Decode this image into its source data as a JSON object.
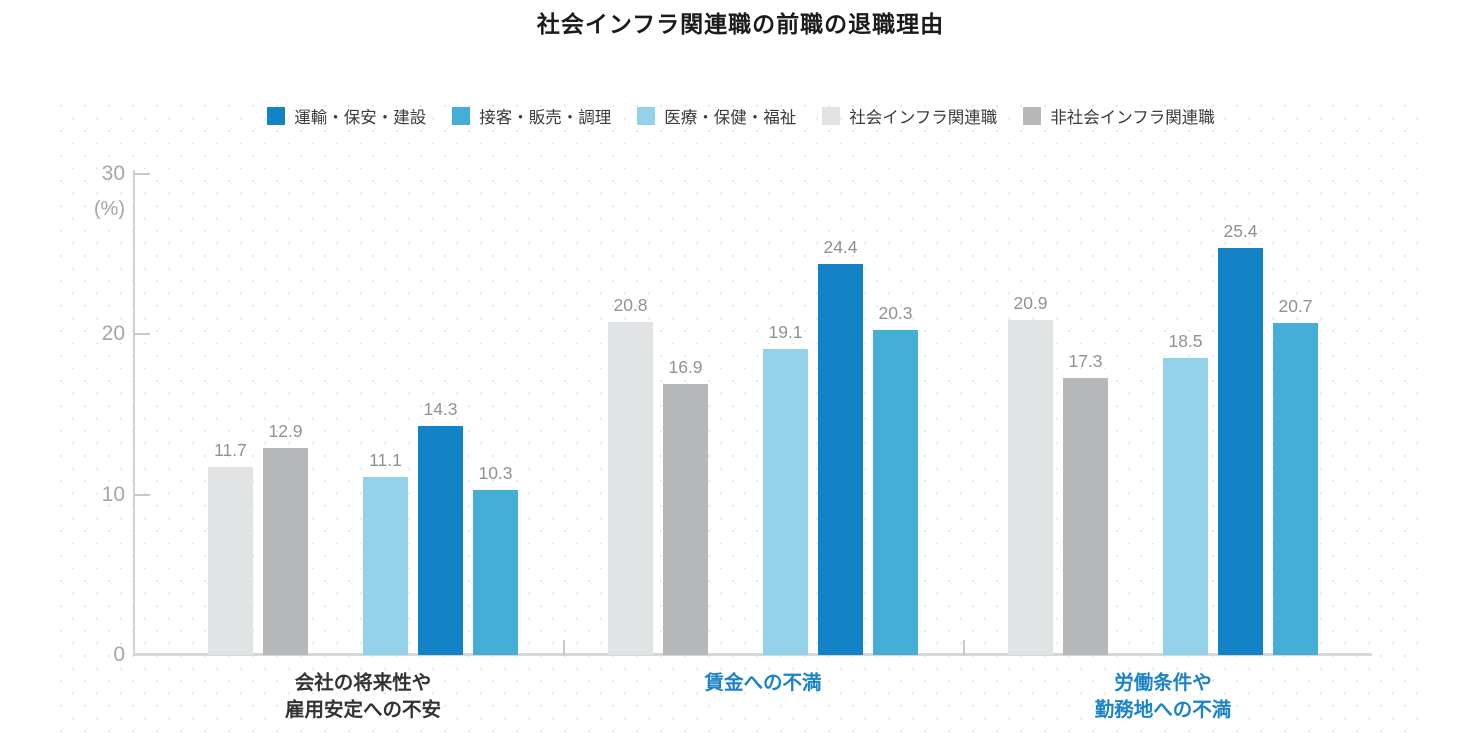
{
  "title": "社会インフラ関連職の前職の退職理由",
  "chart_data": {
    "type": "bar",
    "title": "社会インフラ関連職の前職の退職理由",
    "xlabel": "",
    "ylabel": "(%)",
    "ylim": [
      0,
      30
    ],
    "yticks": [
      0,
      10,
      20,
      30
    ],
    "grid": "dotted-background",
    "legend_position": "top-center",
    "categories": [
      "会社の将来性や\n雇用安定への不安",
      "賃金への不満",
      "労働条件や\n勤務地への不満"
    ],
    "category_label_colors": [
      "#333333",
      "#1c83c6",
      "#1c83c6"
    ],
    "series": [
      {
        "name": "社会インフラ関連職",
        "color": "#e1e3e4",
        "values": [
          11.7,
          20.8,
          20.9
        ]
      },
      {
        "name": "非社会インフラ関連職",
        "color": "#b6b8b9",
        "values": [
          12.9,
          16.9,
          17.3
        ]
      },
      {
        "name": "医療・保健・福祉",
        "color": "#93d2e9",
        "values": [
          11.1,
          19.1,
          18.5
        ]
      },
      {
        "name": "運輸・保安・建設",
        "color": "#1382c6",
        "values": [
          14.3,
          24.4,
          25.4
        ]
      },
      {
        "name": "接客・販売・調理",
        "color": "#45aed6",
        "values": [
          10.3,
          20.3,
          20.7
        ]
      }
    ],
    "legend_order": [
      "運輸・保安・建設",
      "接客・販売・調理",
      "医療・保健・福祉",
      "社会インフラ関連職",
      "非社会インフラ関連職"
    ],
    "value_label_decimals": 1,
    "colors": {
      "axis": "#d2d4d5",
      "tick_label": "#a4a7a9",
      "value_label": "#8f9296",
      "dot_pattern": "#e8e9ea",
      "title_text": "#1b1b1b",
      "legend_text": "#3b3b3b"
    }
  }
}
